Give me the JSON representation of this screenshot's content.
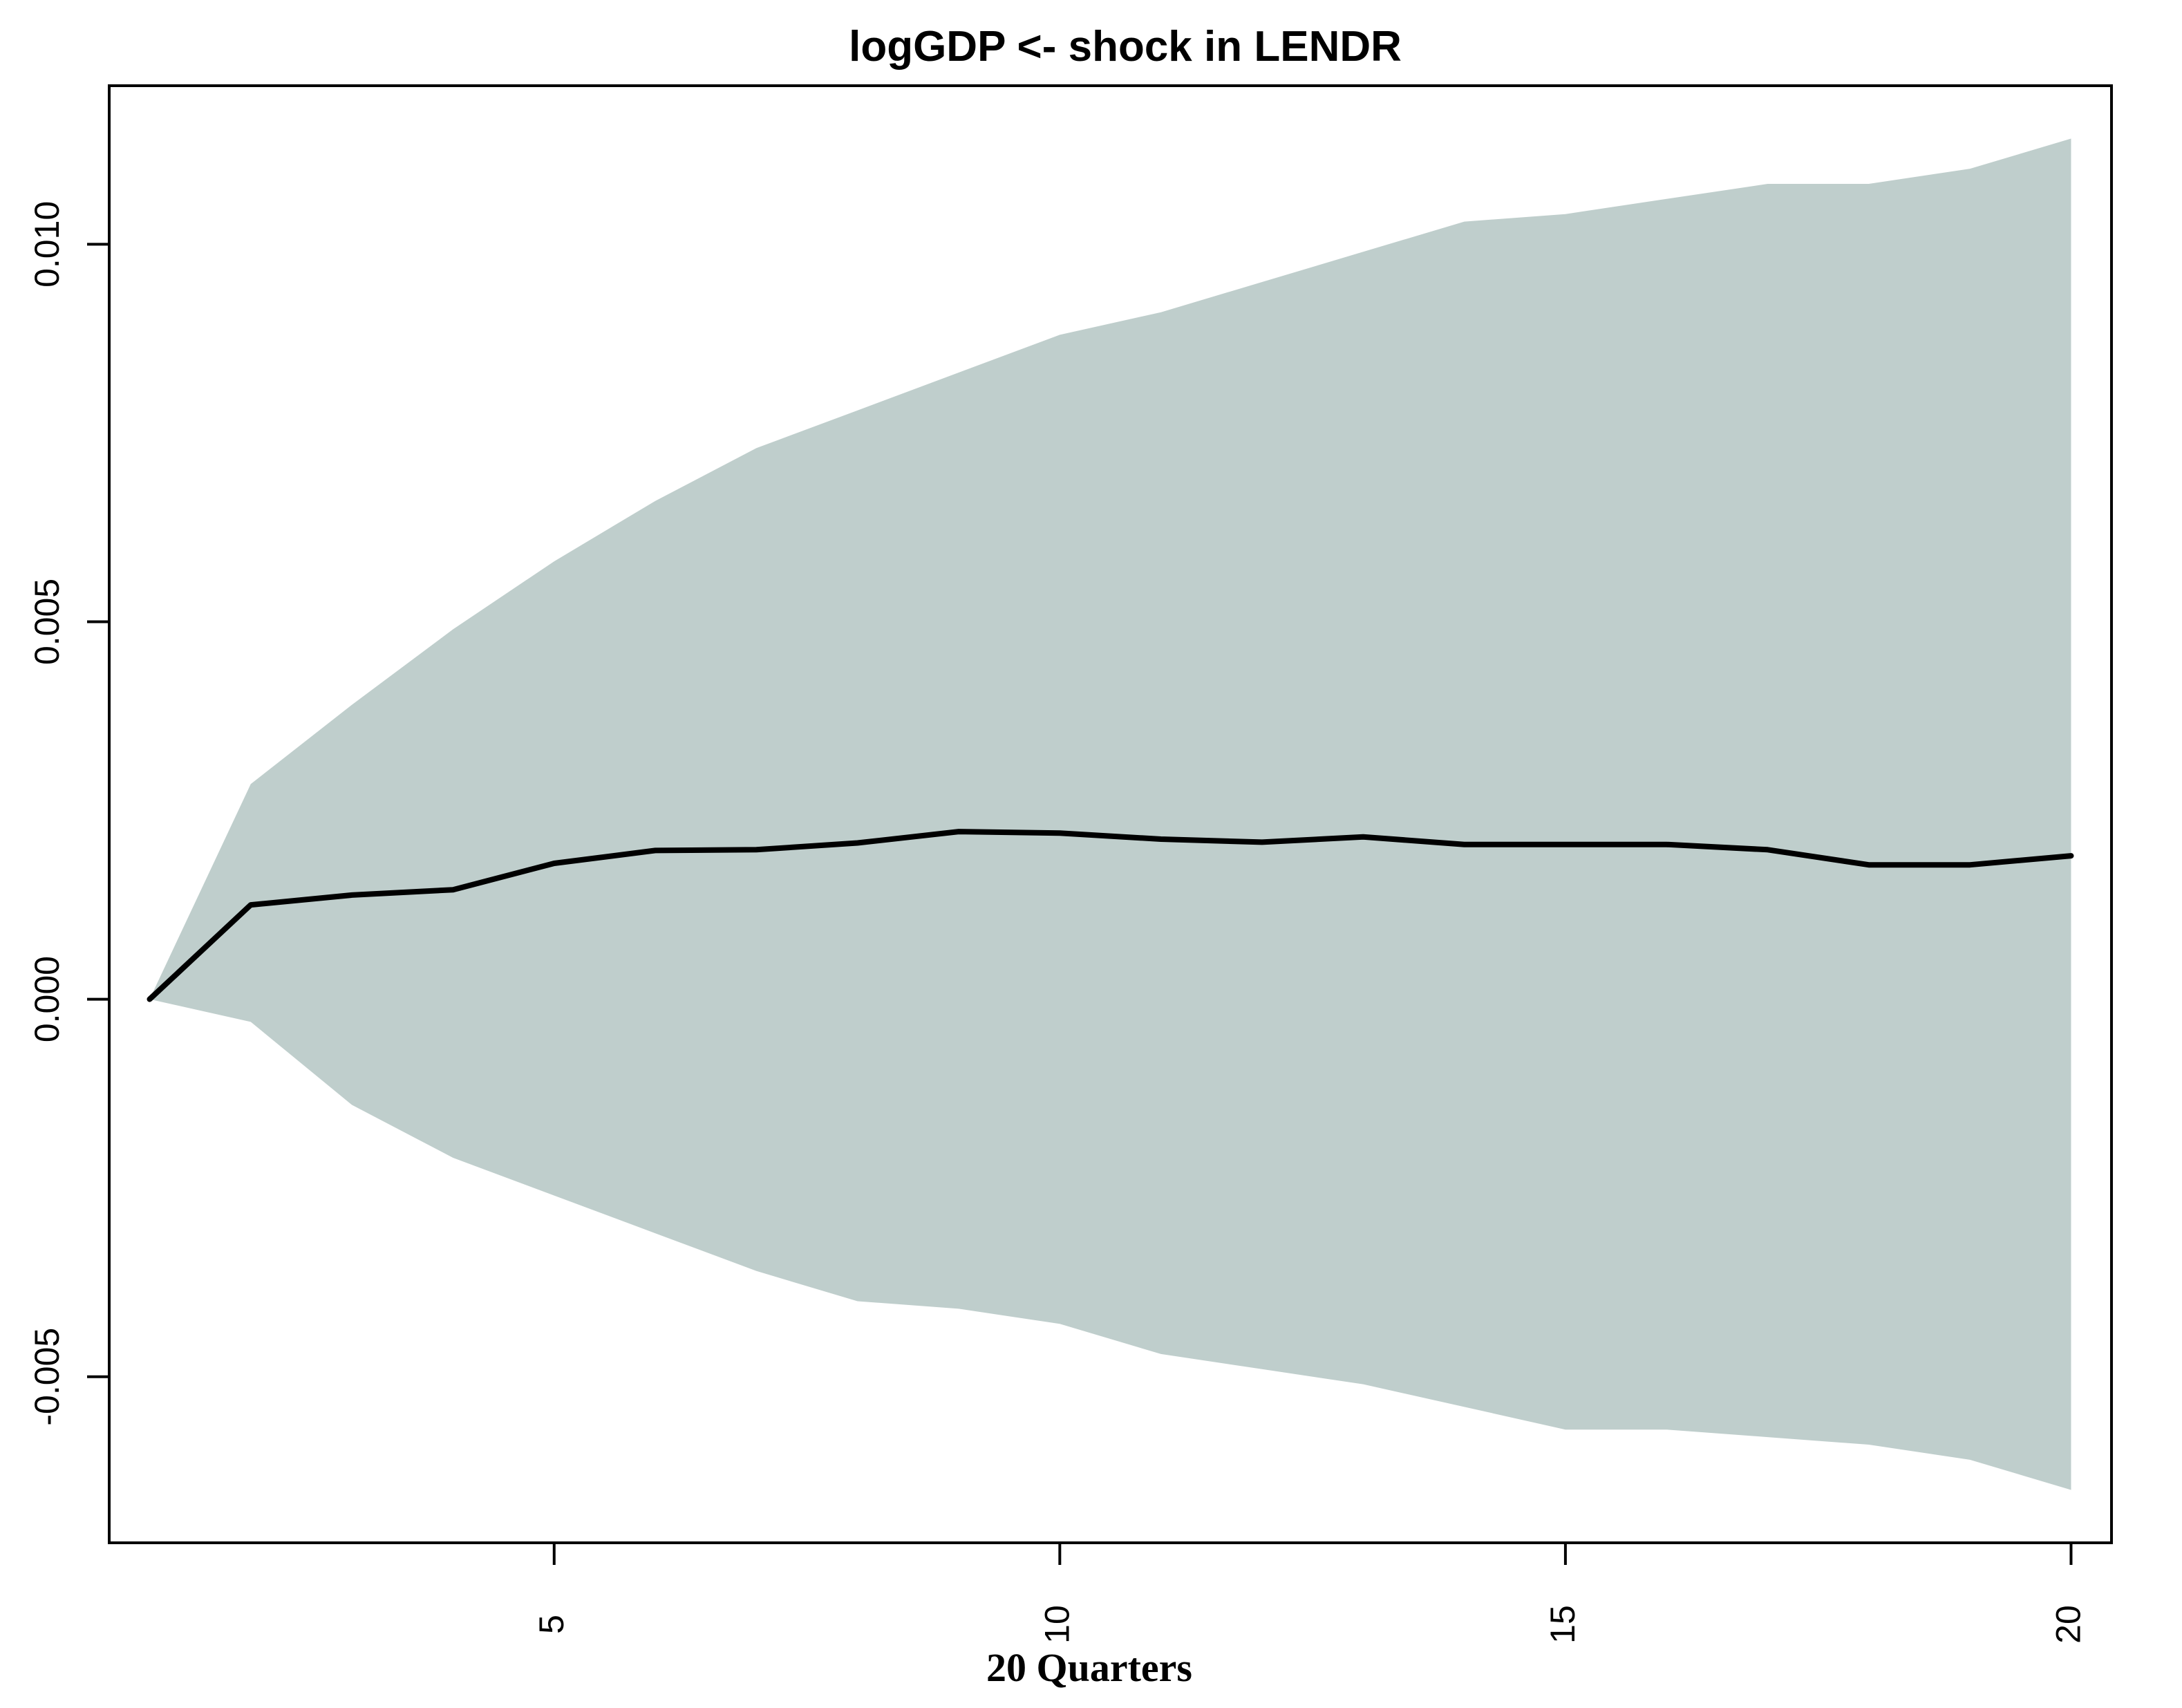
{
  "chart_data": {
    "type": "line",
    "title": "logGDP <- shock in LENDR",
    "xlabel": "20 Quarters",
    "ylabel": "",
    "xlim": [
      0.6,
      20.4
    ],
    "ylim": [
      -0.0072,
      0.0121
    ],
    "x_ticks": [
      5,
      10,
      15,
      20
    ],
    "x_tick_labels": [
      "5",
      "10",
      "15",
      "20"
    ],
    "y_ticks": [
      -0.005,
      0.0,
      0.005,
      0.01
    ],
    "y_tick_labels": [
      "-0.005",
      "0.000",
      "0.005",
      "0.010"
    ],
    "grid": false,
    "legend": "none",
    "colors": {
      "band": "#bfcecc",
      "line": "#000000",
      "axis": "#000000",
      "background": "#ffffff"
    },
    "x": [
      1,
      2,
      3,
      4,
      5,
      6,
      7,
      8,
      9,
      10,
      11,
      12,
      13,
      14,
      15,
      16,
      17,
      18,
      19,
      20
    ],
    "series": [
      {
        "role": "irf",
        "values": [
          0.0,
          0.00125,
          0.00138,
          0.00145,
          0.0018,
          0.00197,
          0.00198,
          0.00207,
          0.00222,
          0.0022,
          0.00212,
          0.00208,
          0.00215,
          0.00205,
          0.00205,
          0.00205,
          0.00198,
          0.00178,
          0.00178,
          0.0019
        ]
      },
      {
        "role": "upper",
        "values": [
          0.0,
          0.00285,
          0.0039,
          0.0049,
          0.0058,
          0.0066,
          0.0073,
          0.0078,
          0.0083,
          0.0088,
          0.0091,
          0.0095,
          0.0099,
          0.0103,
          0.0104,
          0.0106,
          0.0108,
          0.0108,
          0.011,
          0.0114
        ]
      },
      {
        "role": "lower",
        "values": [
          0.0,
          -0.0003,
          -0.0014,
          -0.0021,
          -0.0026,
          -0.0031,
          -0.0036,
          -0.004,
          -0.0041,
          -0.0043,
          -0.0047,
          -0.0049,
          -0.0051,
          -0.0054,
          -0.0057,
          -0.0057,
          -0.0058,
          -0.0059,
          -0.0061,
          -0.0065
        ]
      }
    ]
  }
}
